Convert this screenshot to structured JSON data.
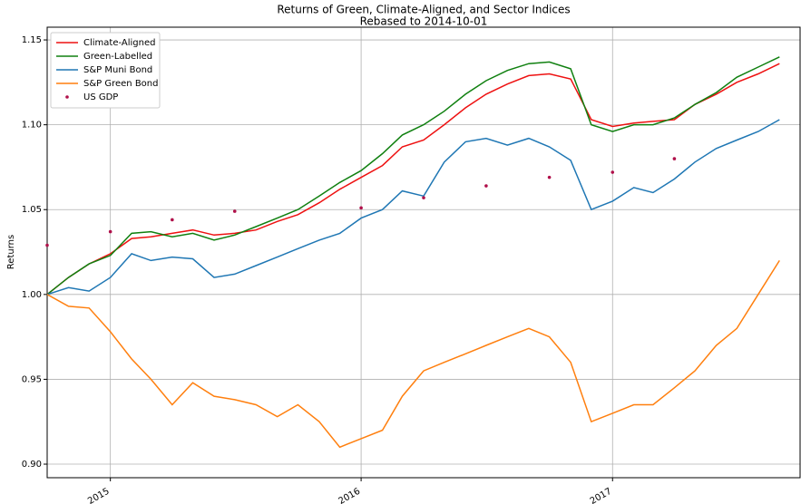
{
  "chart_data": {
    "type": "line",
    "title": "Returns of Green, Climate-Aligned, and Sector Indices",
    "subtitle": "Rebased to 2014-10-01",
    "y_label": "Returns",
    "x": [
      "2014-10",
      "2014-11",
      "2014-12",
      "2015-01",
      "2015-02",
      "2015-03",
      "2015-04",
      "2015-05",
      "2015-06",
      "2015-07",
      "2015-08",
      "2015-09",
      "2015-10",
      "2015-11",
      "2015-12",
      "2016-01",
      "2016-02",
      "2016-03",
      "2016-04",
      "2016-05",
      "2016-06",
      "2016-07",
      "2016-08",
      "2016-09",
      "2016-10",
      "2016-11",
      "2016-12",
      "2017-01",
      "2017-02",
      "2017-03",
      "2017-04",
      "2017-05",
      "2017-06",
      "2017-07",
      "2017-08",
      "2017-09"
    ],
    "series": [
      {
        "name": "Climate-Aligned",
        "color": "#ee1111",
        "style": "line",
        "values": [
          1.0,
          1.01,
          1.018,
          1.024,
          1.033,
          1.034,
          1.036,
          1.038,
          1.035,
          1.036,
          1.038,
          1.043,
          1.047,
          1.054,
          1.062,
          1.069,
          1.076,
          1.087,
          1.091,
          1.1,
          1.11,
          1.118,
          1.124,
          1.129,
          1.13,
          1.127,
          1.103,
          1.099,
          1.101,
          1.102,
          1.103,
          1.112,
          1.118,
          1.125,
          1.13,
          1.136
        ]
      },
      {
        "name": "Green-Labelled",
        "color": "#108010",
        "style": "line",
        "values": [
          1.0,
          1.01,
          1.018,
          1.023,
          1.036,
          1.037,
          1.034,
          1.036,
          1.032,
          1.035,
          1.04,
          1.045,
          1.05,
          1.058,
          1.066,
          1.073,
          1.083,
          1.094,
          1.1,
          1.108,
          1.118,
          1.126,
          1.132,
          1.136,
          1.137,
          1.133,
          1.1,
          1.096,
          1.1,
          1.1,
          1.104,
          1.112,
          1.119,
          1.128,
          1.134,
          1.14
        ]
      },
      {
        "name": "S&P Muni Bond",
        "color": "#1f77b4",
        "style": "line",
        "values": [
          1.0,
          1.004,
          1.002,
          1.01,
          1.024,
          1.02,
          1.022,
          1.021,
          1.01,
          1.012,
          1.017,
          1.022,
          1.027,
          1.032,
          1.036,
          1.045,
          1.05,
          1.061,
          1.058,
          1.078,
          1.09,
          1.092,
          1.088,
          1.092,
          1.087,
          1.079,
          1.05,
          1.055,
          1.063,
          1.06,
          1.068,
          1.078,
          1.086,
          1.091,
          1.096,
          1.103
        ]
      },
      {
        "name": "S&P Green Bond",
        "color": "#ff7f0e",
        "style": "line",
        "values": [
          1.0,
          0.993,
          0.992,
          0.978,
          0.962,
          0.95,
          0.935,
          0.948,
          0.94,
          0.938,
          0.935,
          0.928,
          0.935,
          0.925,
          0.91,
          0.915,
          0.92,
          0.94,
          0.955,
          0.96,
          0.965,
          0.97,
          0.975,
          0.98,
          0.975,
          0.96,
          0.925,
          0.93,
          0.935,
          0.935,
          0.945,
          0.955,
          0.97,
          0.98,
          1.0,
          1.02
        ]
      },
      {
        "name": "US GDP",
        "color": "#b0104a",
        "style": "points",
        "x": [
          "2014-10",
          "2015-01",
          "2015-04",
          "2015-07",
          "2016-01",
          "2016-04",
          "2016-07",
          "2016-10",
          "2017-01",
          "2017-04"
        ],
        "values": [
          1.029,
          1.037,
          1.044,
          1.049,
          1.051,
          1.057,
          1.064,
          1.069,
          1.072,
          1.08
        ]
      }
    ],
    "xlim": [
      "2014-10",
      "2017-10"
    ],
    "xticks": [
      {
        "value": "2015-01",
        "label": "2015"
      },
      {
        "value": "2016-01",
        "label": "2016"
      },
      {
        "value": "2017-01",
        "label": "2017"
      }
    ],
    "ylim": [
      0.892,
      1.1575
    ],
    "yticks": [
      {
        "value": 0.9,
        "label": "0.90"
      },
      0.95,
      {
        "value": 1.0,
        "label": "1.00"
      },
      1.05,
      {
        "value": 1.1,
        "label": "1.10"
      },
      1.15
    ],
    "grid": true,
    "legend": "upper-left"
  }
}
